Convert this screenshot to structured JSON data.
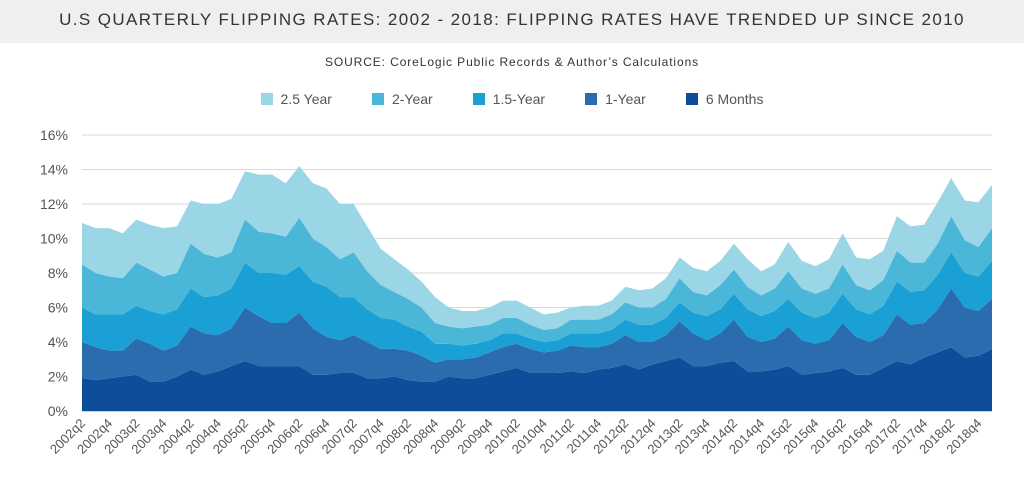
{
  "chart_data": {
    "type": "area",
    "stacked": true,
    "title": "U.S QUARTERLY FLIPPING RATES: 2002 - 2018: FLIPPING RATES HAVE TRENDED UP SINCE 2010",
    "subtitle": "SOURCE: CoreLogic Public Records & Author’s Calculations",
    "xlabel": "",
    "ylabel": "",
    "ylim": [
      0,
      16
    ],
    "y_ticks": [
      "0%",
      "2%",
      "4%",
      "6%",
      "8%",
      "10%",
      "12%",
      "14%",
      "16%"
    ],
    "grid": true,
    "legend_position": "top",
    "x": [
      "2002q2",
      "2002q3",
      "2002q4",
      "2003q1",
      "2003q2",
      "2003q3",
      "2003q4",
      "2004q1",
      "2004q2",
      "2004q3",
      "2004q4",
      "2005q1",
      "2005q2",
      "2005q3",
      "2005q4",
      "2006q1",
      "2006q2",
      "2006q3",
      "2006q4",
      "2007q1",
      "2007q2",
      "2007q3",
      "2007q4",
      "2008q1",
      "2008q2",
      "2008q3",
      "2008q4",
      "2009q1",
      "2009q2",
      "2009q3",
      "2009q4",
      "2010q1",
      "2010q2",
      "2010q3",
      "2010q4",
      "2011q1",
      "2011q2",
      "2011q3",
      "2011q4",
      "2012q1",
      "2012q2",
      "2012q3",
      "2012q4",
      "2013q1",
      "2013q2",
      "2013q3",
      "2013q4",
      "2014q1",
      "2014q2",
      "2014q3",
      "2014q4",
      "2015q1",
      "2015q2",
      "2015q3",
      "2015q4",
      "2016q1",
      "2016q2",
      "2016q3",
      "2016q4",
      "2017q1",
      "2017q2",
      "2017q3",
      "2017q4",
      "2018q1",
      "2018q2",
      "2018q3",
      "2018q4",
      "2019q1"
    ],
    "x_tick_labels": [
      "2002q2",
      "2002q4",
      "2003q2",
      "2003q4",
      "2004q2",
      "2004q4",
      "2005q2",
      "2005q4",
      "2006q2",
      "2006q4",
      "2007q2",
      "2007q4",
      "2008q2",
      "2008q4",
      "2009q2",
      "2009q4",
      "2010q2",
      "2010q4",
      "2011q2",
      "2011q4",
      "2012q2",
      "2012q4",
      "2013q2",
      "2013q4",
      "2014q2",
      "2014q4",
      "2015q2",
      "2015q4",
      "2016q2",
      "2016q4",
      "2017q2",
      "2017q4",
      "2018q2",
      "2018q4"
    ],
    "series": [
      {
        "name": "6 Months",
        "color": "#0d4d9a",
        "values": [
          1.9,
          1.8,
          1.9,
          2.0,
          2.1,
          1.7,
          1.7,
          2.0,
          2.4,
          2.1,
          2.3,
          2.6,
          2.9,
          2.6,
          2.6,
          2.6,
          2.6,
          2.1,
          2.1,
          2.2,
          2.2,
          1.9,
          1.9,
          2.0,
          1.8,
          1.7,
          1.7,
          2.0,
          1.9,
          1.9,
          2.1,
          2.3,
          2.5,
          2.2,
          2.2,
          2.2,
          2.3,
          2.2,
          2.4,
          2.5,
          2.7,
          2.4,
          2.7,
          2.9,
          3.1,
          2.6,
          2.6,
          2.8,
          2.9,
          2.3,
          2.3,
          2.4,
          2.6,
          2.1,
          2.2,
          2.3,
          2.5,
          2.1,
          2.1,
          2.5,
          2.9,
          2.7,
          3.1,
          3.4,
          3.7,
          3.1,
          3.2,
          3.6
        ]
      },
      {
        "name": "1-Year",
        "color": "#2a6cad",
        "values": [
          2.1,
          1.9,
          1.6,
          1.5,
          2.1,
          2.2,
          1.8,
          1.8,
          2.5,
          2.4,
          2.1,
          2.2,
          3.1,
          2.9,
          2.5,
          2.5,
          3.1,
          2.7,
          2.2,
          1.9,
          2.2,
          2.1,
          1.7,
          1.6,
          1.7,
          1.5,
          1.1,
          1.0,
          1.1,
          1.2,
          1.3,
          1.4,
          1.4,
          1.4,
          1.2,
          1.3,
          1.5,
          1.5,
          1.3,
          1.4,
          1.7,
          1.6,
          1.3,
          1.5,
          2.1,
          1.9,
          1.5,
          1.7,
          2.4,
          2.0,
          1.7,
          1.8,
          2.3,
          2.0,
          1.7,
          1.8,
          2.6,
          2.2,
          1.9,
          1.9,
          2.7,
          2.3,
          2.0,
          2.5,
          3.4,
          2.9,
          2.6,
          2.9
        ]
      },
      {
        "name": "1.5-Year",
        "color": "#1aa0d5",
        "values": [
          2.0,
          1.9,
          2.1,
          2.1,
          1.9,
          1.9,
          2.1,
          2.1,
          2.2,
          2.1,
          2.3,
          2.3,
          2.6,
          2.5,
          2.9,
          2.8,
          2.7,
          2.7,
          2.9,
          2.5,
          2.2,
          1.9,
          1.8,
          1.7,
          1.4,
          1.4,
          1.1,
          0.9,
          0.8,
          0.8,
          0.7,
          0.8,
          0.6,
          0.6,
          0.6,
          0.6,
          0.7,
          0.8,
          0.8,
          0.8,
          0.9,
          1.0,
          1.0,
          1.0,
          1.1,
          1.2,
          1.4,
          1.4,
          1.5,
          1.6,
          1.5,
          1.6,
          1.6,
          1.6,
          1.5,
          1.6,
          1.7,
          1.6,
          1.6,
          1.7,
          1.9,
          1.9,
          1.9,
          2.0,
          2.1,
          2.0,
          2.0,
          2.2
        ]
      },
      {
        "name": "2-Year",
        "color": "#4bb7d8",
        "values": [
          2.5,
          2.4,
          2.2,
          2.1,
          2.5,
          2.4,
          2.2,
          2.1,
          2.6,
          2.5,
          2.2,
          2.1,
          2.5,
          2.4,
          2.3,
          2.2,
          2.8,
          2.5,
          2.3,
          2.2,
          2.6,
          2.2,
          1.9,
          1.6,
          1.6,
          1.4,
          1.2,
          1.0,
          1.0,
          1.0,
          0.9,
          0.9,
          0.9,
          0.8,
          0.7,
          0.7,
          0.8,
          0.8,
          0.8,
          0.9,
          1.0,
          1.0,
          1.0,
          1.1,
          1.4,
          1.2,
          1.2,
          1.4,
          1.4,
          1.3,
          1.2,
          1.3,
          1.6,
          1.4,
          1.4,
          1.4,
          1.7,
          1.4,
          1.4,
          1.5,
          1.8,
          1.7,
          1.6,
          1.8,
          2.1,
          1.9,
          1.7,
          1.9
        ]
      },
      {
        "name": "2.5 Year",
        "color": "#9bd6e6",
        "values": [
          2.4,
          2.6,
          2.8,
          2.6,
          2.5,
          2.6,
          2.8,
          2.7,
          2.5,
          2.9,
          3.1,
          3.1,
          2.8,
          3.3,
          3.4,
          3.1,
          3.0,
          3.2,
          3.4,
          3.2,
          2.8,
          2.6,
          2.1,
          1.9,
          1.7,
          1.5,
          1.5,
          1.1,
          1.0,
          0.9,
          1.0,
          1.0,
          1.0,
          1.0,
          0.9,
          0.9,
          0.7,
          0.8,
          0.8,
          0.8,
          0.9,
          1.0,
          1.1,
          1.2,
          1.2,
          1.4,
          1.4,
          1.4,
          1.5,
          1.6,
          1.4,
          1.4,
          1.7,
          1.6,
          1.6,
          1.7,
          1.8,
          1.6,
          1.8,
          1.7,
          2.0,
          2.1,
          2.2,
          2.4,
          2.2,
          2.3,
          2.6,
          2.5
        ]
      }
    ]
  }
}
